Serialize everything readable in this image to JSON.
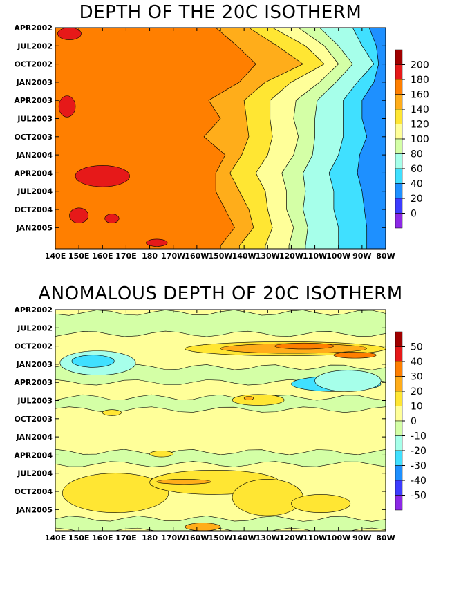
{
  "chart_data": [
    {
      "type": "heatmap",
      "title": "DEPTH OF THE 20C ISOTHERM",
      "xlabel": "",
      "ylabel": "",
      "x_ticks": [
        "140E",
        "150E",
        "160E",
        "170E",
        "180",
        "170W",
        "160W",
        "150W",
        "140W",
        "130W",
        "120W",
        "110W",
        "100W",
        "90W",
        "80W"
      ],
      "y_ticks": [
        "APR2002",
        "JUL2002",
        "OCT2002",
        "JAN2003",
        "APR2003",
        "JUL2003",
        "OCT2003",
        "JAN2004",
        "APR2004",
        "JUL2004",
        "OCT2004",
        "JAN2005"
      ],
      "colorbar": {
        "labels": [
          "200",
          "180",
          "160",
          "140",
          "120",
          "100",
          "80",
          "60",
          "40",
          "20",
          "0"
        ],
        "colors": [
          "#a00000",
          "#e61919",
          "#ff7f00",
          "#ffad1a",
          "#ffe633",
          "#ffff99",
          "#d4ffa6",
          "#a6ffea",
          "#40e0ff",
          "#1e90ff",
          "#3c3cff",
          "#8c28e6"
        ]
      },
      "x_lon_range": [
        140,
        280
      ],
      "y_month_range": [
        0,
        36.5
      ],
      "boundaries": {
        "b200": [
          {
            "lon": 140,
            "d": "> off"
          }
        ],
        "b160": [
          [
            0,
            208
          ],
          [
            3,
            217
          ],
          [
            6,
            225
          ],
          [
            9,
            218
          ],
          [
            12,
            205
          ],
          [
            15,
            210
          ],
          [
            18,
            203
          ],
          [
            21,
            212
          ],
          [
            24,
            208
          ],
          [
            27,
            208
          ],
          [
            30,
            212
          ],
          [
            33,
            216
          ],
          [
            36,
            210
          ]
        ],
        "b140": [
          [
            0,
            222
          ],
          [
            3,
            234
          ],
          [
            6,
            245
          ],
          [
            9,
            229
          ],
          [
            12,
            220
          ],
          [
            15,
            221
          ],
          [
            18,
            222
          ],
          [
            21,
            219
          ],
          [
            24,
            214
          ],
          [
            27,
            218
          ],
          [
            30,
            222
          ],
          [
            33,
            224
          ],
          [
            36,
            218
          ]
        ],
        "b120": [
          [
            0,
            232
          ],
          [
            3,
            246
          ],
          [
            6,
            254
          ],
          [
            9,
            240
          ],
          [
            12,
            231
          ],
          [
            15,
            231
          ],
          [
            18,
            232
          ],
          [
            21,
            230
          ],
          [
            24,
            225
          ],
          [
            27,
            229
          ],
          [
            30,
            230
          ],
          [
            33,
            232
          ],
          [
            36,
            229
          ]
        ],
        "b100": [
          [
            0,
            243
          ],
          [
            3,
            254
          ],
          [
            6,
            260
          ],
          [
            9,
            252
          ],
          [
            12,
            242
          ],
          [
            15,
            241
          ],
          [
            18,
            243
          ],
          [
            21,
            241
          ],
          [
            24,
            236
          ],
          [
            27,
            238
          ],
          [
            30,
            238
          ],
          [
            33,
            241
          ],
          [
            36,
            239
          ]
        ],
        "b80": [
          [
            0,
            252
          ],
          [
            3,
            260
          ],
          [
            6,
            266
          ],
          [
            9,
            259
          ],
          [
            12,
            251
          ],
          [
            15,
            250
          ],
          [
            18,
            250
          ],
          [
            21,
            249
          ],
          [
            24,
            245
          ],
          [
            27,
            246
          ],
          [
            30,
            245
          ],
          [
            33,
            247
          ],
          [
            36,
            246
          ]
        ],
        "b60": [
          [
            0,
            266
          ],
          [
            3,
            270
          ],
          [
            6,
            275
          ],
          [
            9,
            268
          ],
          [
            12,
            262
          ],
          [
            15,
            262
          ],
          [
            18,
            262
          ],
          [
            21,
            260
          ],
          [
            24,
            256
          ],
          [
            27,
            258
          ],
          [
            30,
            258
          ],
          [
            33,
            260
          ],
          [
            36,
            260
          ]
        ],
        "b40": [
          [
            0,
            273
          ],
          [
            3,
            276
          ],
          [
            6,
            277
          ],
          [
            9,
            275
          ],
          [
            12,
            270
          ],
          [
            15,
            270
          ],
          [
            18,
            272
          ],
          [
            21,
            269
          ],
          [
            24,
            268
          ],
          [
            27,
            270
          ],
          [
            30,
            271
          ],
          [
            33,
            272
          ],
          [
            36,
            272
          ]
        ]
      },
      "red_patches": [
        {
          "lon": 146,
          "month": 1.0,
          "dlon": 10,
          "dmonth": 2.0
        },
        {
          "lon": 145,
          "month": 13.0,
          "dlon": 7,
          "dmonth": 3.5
        },
        {
          "lon": 160,
          "month": 24.5,
          "dlon": 23,
          "dmonth": 3.5
        },
        {
          "lon": 150,
          "month": 31.0,
          "dlon": 8,
          "dmonth": 2.5
        },
        {
          "lon": 164,
          "month": 31.5,
          "dlon": 6,
          "dmonth": 1.5
        },
        {
          "lon": 183,
          "month": 35.5,
          "dlon": 9,
          "dmonth": 1.2
        }
      ]
    },
    {
      "type": "heatmap",
      "title": "ANOMALOUS DEPTH OF 20C ISOTHERM",
      "xlabel": "",
      "ylabel": "",
      "x_ticks": [
        "140E",
        "150E",
        "160E",
        "170E",
        "180",
        "170W",
        "160W",
        "150W",
        "140W",
        "130W",
        "120W",
        "110W",
        "100W",
        "90W",
        "80W"
      ],
      "y_ticks": [
        "APR2002",
        "JUL2002",
        "OCT2002",
        "JAN2003",
        "APR2003",
        "JUL2003",
        "OCT2003",
        "JAN2004",
        "APR2004",
        "JUL2004",
        "OCT2004",
        "JAN2005"
      ],
      "colorbar": {
        "labels": [
          "50",
          "40",
          "30",
          "20",
          "10",
          "0",
          "-10",
          "-20",
          "-30",
          "-40",
          "-50"
        ],
        "colors": [
          "#a00000",
          "#e61919",
          "#ff7f00",
          "#ffad1a",
          "#ffe633",
          "#ffff99",
          "#d4ffa6",
          "#a6ffea",
          "#40e0ff",
          "#1e90ff",
          "#3c3cff",
          "#8c28e6"
        ]
      },
      "x_lon_range": [
        140,
        280
      ],
      "y_month_range": [
        0,
        36.5
      ],
      "bands": [
        {
          "level": "-10..0",
          "month": 0.5,
          "dmonth": 3.5
        },
        {
          "level": "-10..0",
          "month": 9.5,
          "dmonth": 2.5
        },
        {
          "level": "-10..0",
          "month": 14.5,
          "dmonth": 2.0
        },
        {
          "level": "-10..0",
          "month": 23.5,
          "dmonth": 2.0
        },
        {
          "level": "-10..0",
          "month": 34.5,
          "dmonth": 2.0
        }
      ],
      "anomaly_patches": [
        {
          "level": "10..20",
          "lon": 195,
          "month": 5.3,
          "dlon": 85,
          "dmonth": 2.3
        },
        {
          "level": "20..30",
          "lon": 210,
          "month": 5.6,
          "dlon": 62,
          "dmonth": 1.6
        },
        {
          "level": "30..40",
          "lon": 233,
          "month": 5.5,
          "dlon": 25,
          "dmonth": 1.0
        },
        {
          "level": "30..40",
          "lon": 258,
          "month": 7.0,
          "dlon": 18,
          "dmonth": 1.0
        },
        {
          "level": "-20..-10",
          "lon": 142,
          "month": 6.8,
          "dlon": 32,
          "dmonth": 4.0
        },
        {
          "level": "-30..-20",
          "lon": 147,
          "month": 7.5,
          "dlon": 18,
          "dmonth": 2.0
        },
        {
          "level": "-30..-20",
          "lon": 240,
          "month": 11.0,
          "dlon": 38,
          "dmonth": 2.5
        },
        {
          "level": "-20..-10",
          "lon": 250,
          "month": 10.0,
          "dlon": 28,
          "dmonth": 3.5
        },
        {
          "level": "10..20",
          "lon": 215,
          "month": 14.0,
          "dlon": 22,
          "dmonth": 1.8
        },
        {
          "level": "20..30",
          "lon": 220,
          "month": 14.3,
          "dlon": 4,
          "dmonth": 0.6
        },
        {
          "level": "10..20",
          "lon": 143,
          "month": 27.0,
          "dlon": 45,
          "dmonth": 6.5
        },
        {
          "level": "10..20",
          "lon": 180,
          "month": 26.5,
          "dlon": 55,
          "dmonth": 4.0
        },
        {
          "level": "20..30",
          "lon": 183,
          "month": 28.0,
          "dlon": 23,
          "dmonth": 0.8
        },
        {
          "level": "10..20",
          "lon": 215,
          "month": 28.0,
          "dlon": 30,
          "dmonth": 6.0
        },
        {
          "level": "10..20",
          "lon": 240,
          "month": 30.5,
          "dlon": 25,
          "dmonth": 3.0
        },
        {
          "level": "20..30",
          "lon": 195,
          "month": 35.2,
          "dlon": 15,
          "dmonth": 1.3
        },
        {
          "level": "10..20",
          "lon": 180,
          "month": 23.3,
          "dlon": 10,
          "dmonth": 1.0
        },
        {
          "level": "10..20",
          "lon": 160,
          "month": 16.5,
          "dlon": 8,
          "dmonth": 1.0
        }
      ]
    }
  ]
}
